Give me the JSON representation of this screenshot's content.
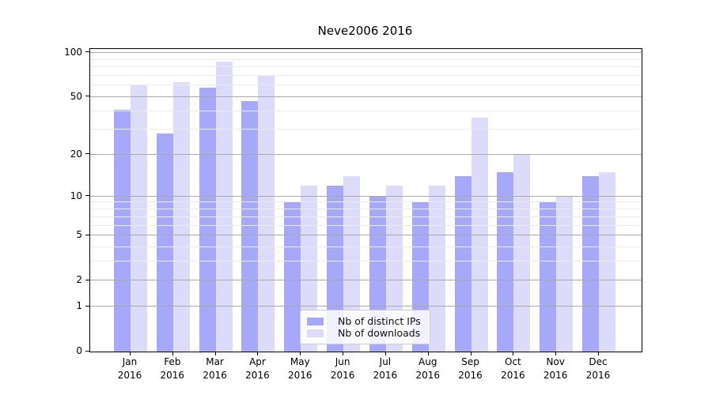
{
  "title": "Neve2006 2016",
  "year": "2016",
  "legend": {
    "items": [
      "Nb of distinct IPs",
      "Nb of downloads"
    ]
  },
  "y_axis": {
    "tick_labels": [
      "100",
      "50",
      "20",
      "10",
      "5",
      "2",
      "1",
      "0"
    ],
    "tick_values": [
      100,
      50,
      20,
      10,
      5,
      2,
      1,
      0
    ],
    "minor_values": [
      3,
      4,
      6,
      7,
      8,
      9,
      30,
      40,
      60,
      70,
      80,
      90
    ]
  },
  "x_axis": {
    "months": [
      "Jan",
      "Feb",
      "Mar",
      "Apr",
      "May",
      "Jun",
      "Jul",
      "Aug",
      "Sep",
      "Oct",
      "Nov",
      "Dec"
    ]
  },
  "colors": {
    "distinct_ips_bar": "#a8a8f8",
    "downloads_bar": "#dcdcfa",
    "major_grid": "#a9a9a9",
    "minor_grid": "#ececec",
    "axis": "#000000"
  },
  "chart_data": {
    "type": "bar",
    "title": "Neve2006 2016",
    "categories": [
      "Jan 2016",
      "Feb 2016",
      "Mar 2016",
      "Apr 2016",
      "May 2016",
      "Jun 2016",
      "Jul 2016",
      "Aug 2016",
      "Sep 2016",
      "Oct 2016",
      "Nov 2016",
      "Dec 2016"
    ],
    "series": [
      {
        "name": "Nb of distinct IPs",
        "color": "#a8a8f8",
        "values": [
          41,
          28,
          58,
          47,
          9,
          12,
          10,
          9,
          14,
          15,
          9,
          14
        ]
      },
      {
        "name": "Nb of downloads",
        "color": "#dcdcfa",
        "values": [
          61,
          63,
          87,
          70,
          12,
          14,
          12,
          12,
          36,
          20,
          10,
          15
        ]
      }
    ],
    "xlabel": "",
    "ylabel": "",
    "yscale": "log(value+1)",
    "ylim": [
      0,
      106
    ],
    "yticks": [
      0,
      1,
      2,
      5,
      10,
      20,
      50,
      100
    ],
    "grid": true,
    "legend_position": "lower center"
  }
}
